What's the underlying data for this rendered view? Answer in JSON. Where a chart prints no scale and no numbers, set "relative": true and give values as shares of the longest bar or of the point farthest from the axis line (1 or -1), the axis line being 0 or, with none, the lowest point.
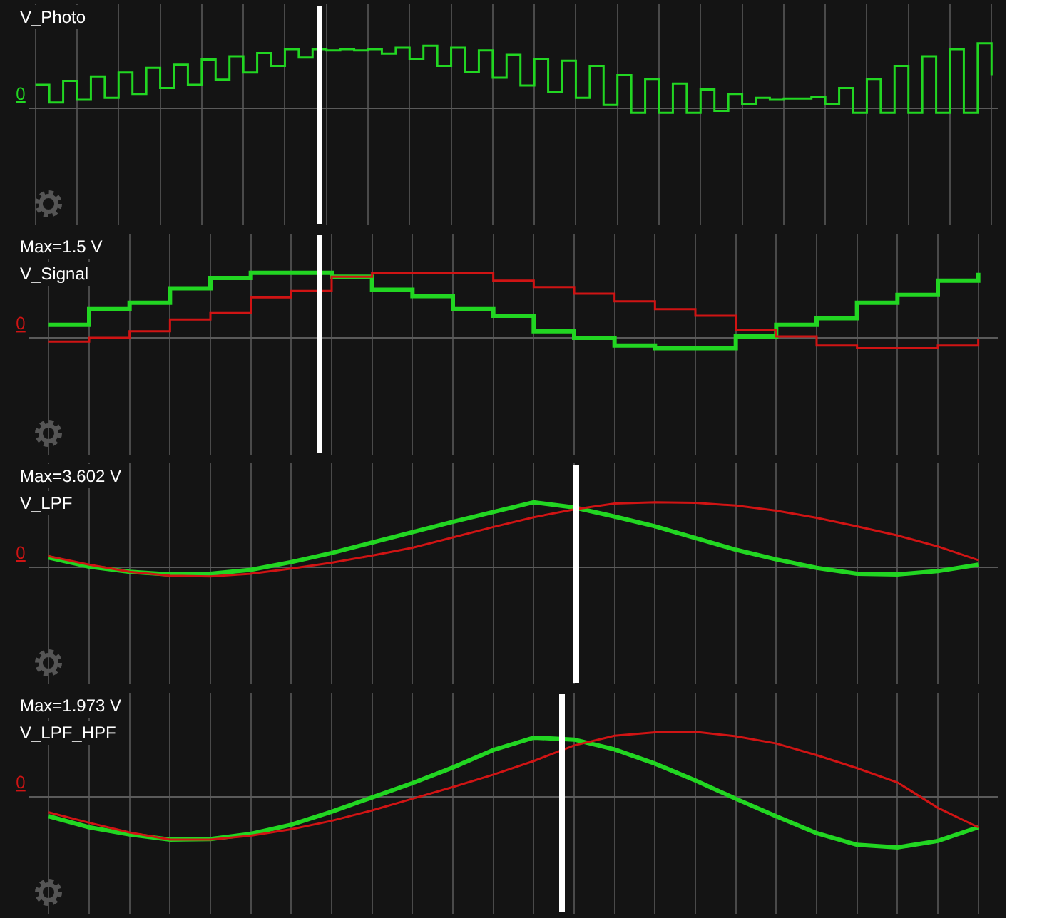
{
  "chart_data": [
    {
      "type": "step",
      "title": "V_Photo",
      "relative": true,
      "grid": "x",
      "categories": [
        null,
        null,
        null,
        null,
        null,
        null,
        null,
        null,
        null,
        null,
        null,
        null,
        null,
        null,
        null,
        null,
        null,
        null,
        null,
        null,
        null,
        null,
        null,
        null,
        null,
        null,
        null,
        null,
        null,
        null,
        null,
        null,
        null,
        null,
        null,
        null,
        null,
        null,
        null,
        null,
        null,
        null,
        null,
        null,
        null,
        null,
        null,
        null,
        null,
        null,
        null,
        null,
        null,
        null,
        null,
        null,
        null,
        null,
        null,
        null,
        null,
        null,
        null,
        null,
        null,
        null,
        null,
        null,
        null,
        null
      ],
      "annotations": [
        "0"
      ],
      "series": [
        {
          "color": "#22d622",
          "values": [
            0.36,
            0.09,
            0.42,
            0.13,
            0.49,
            0.16,
            0.55,
            0.22,
            0.62,
            0.31,
            0.67,
            0.36,
            0.75,
            0.44,
            0.8,
            0.55,
            0.85,
            0.65,
            0.91,
            0.78,
            0.91,
            0.89,
            0.91,
            0.89,
            0.91,
            0.84,
            0.93,
            0.76,
            0.96,
            0.65,
            0.93,
            0.56,
            0.89,
            0.47,
            0.82,
            0.35,
            0.76,
            0.25,
            0.73,
            0.16,
            0.65,
            0.05,
            0.51,
            -0.07,
            0.45,
            -0.07,
            0.38,
            -0.07,
            0.29,
            -0.04,
            0.22,
            0.07,
            0.16,
            0.13,
            0.15,
            0.15,
            0.18,
            0.07,
            0.31,
            -0.07,
            0.45,
            -0.07,
            0.65,
            -0.07,
            0.8,
            -0.07,
            0.91,
            -0.07,
            1,
            0.51
          ]
        }
      ]
    },
    {
      "type": "step",
      "title": "V_Signal",
      "subtitle": "Max=1.5 V",
      "relative": true,
      "grid": "x",
      "categories": [
        null,
        null,
        null,
        null,
        null,
        null,
        null,
        null,
        null,
        null,
        null,
        null,
        null,
        null,
        null,
        null,
        null,
        null,
        null,
        null,
        null,
        null,
        null,
        null
      ],
      "annotations": [
        "0"
      ],
      "series": [
        {
          "color": "#22d622",
          "values": [
            0.2,
            0.44,
            0.54,
            0.76,
            0.92,
            1,
            1,
            0.94,
            0.74,
            0.64,
            0.44,
            0.34,
            0.1,
            0,
            -0.12,
            -0.16,
            -0.16,
            0.02,
            0.2,
            0.3,
            0.54,
            0.66,
            0.88,
            1
          ]
        },
        {
          "color": "#d01414",
          "values": [
            -0.06,
            0,
            0.1,
            0.28,
            0.38,
            0.62,
            0.72,
            0.94,
            1,
            1,
            1,
            0.88,
            0.78,
            0.68,
            0.56,
            0.44,
            0.34,
            0.12,
            0.02,
            -0.12,
            -0.16,
            -0.16,
            -0.12,
            -0.02
          ]
        }
      ]
    },
    {
      "type": "line",
      "title": "V_LPF",
      "subtitle": "Max=3.602 V",
      "relative": true,
      "grid": "x",
      "categories": [
        null,
        null,
        null,
        null,
        null,
        null,
        null,
        null,
        null,
        null,
        null,
        null,
        null,
        null,
        null,
        null,
        null,
        null,
        null,
        null,
        null,
        null,
        null,
        null
      ],
      "annotations": [
        "0"
      ],
      "series": [
        {
          "color": "#22d622",
          "values": [
            0.15,
            0.01,
            -0.07,
            -0.11,
            -0.1,
            -0.04,
            0.08,
            0.22,
            0.38,
            0.54,
            0.7,
            0.85,
            1,
            0.92,
            0.78,
            0.63,
            0.45,
            0.27,
            0.12,
            -0.01,
            -0.1,
            -0.11,
            -0.06,
            0.04
          ]
        },
        {
          "color": "#d01414",
          "values": [
            0.17,
            0.04,
            -0.07,
            -0.13,
            -0.14,
            -0.1,
            -0.02,
            0.07,
            0.18,
            0.3,
            0.46,
            0.62,
            0.77,
            0.89,
            0.98,
            1,
            0.99,
            0.95,
            0.87,
            0.76,
            0.63,
            0.49,
            0.32,
            0.11
          ]
        }
      ]
    },
    {
      "type": "line",
      "title": "V_LPF_HPF",
      "subtitle": "Max=1.973 V",
      "relative": true,
      "grid": "x",
      "categories": [
        null,
        null,
        null,
        null,
        null,
        null,
        null,
        null,
        null,
        null,
        null,
        null,
        null,
        null,
        null,
        null,
        null,
        null,
        null,
        null,
        null,
        null,
        null,
        null
      ],
      "annotations": [
        "0"
      ],
      "series": [
        {
          "color": "#22d622",
          "values": [
            -0.3,
            -0.47,
            -0.58,
            -0.66,
            -0.65,
            -0.57,
            -0.43,
            -0.23,
            -0.01,
            0.21,
            0.45,
            0.72,
            0.91,
            0.88,
            0.73,
            0.51,
            0.25,
            -0.03,
            -0.3,
            -0.56,
            -0.74,
            -0.78,
            -0.68,
            -0.47
          ]
        },
        {
          "color": "#d01414",
          "values": [
            -0.24,
            -0.4,
            -0.55,
            -0.66,
            -0.66,
            -0.6,
            -0.5,
            -0.37,
            -0.21,
            -0.03,
            0.15,
            0.34,
            0.55,
            0.79,
            0.94,
            0.99,
            1,
            0.93,
            0.82,
            0.64,
            0.44,
            0.22,
            -0.17,
            -0.47
          ]
        }
      ]
    }
  ]
}
